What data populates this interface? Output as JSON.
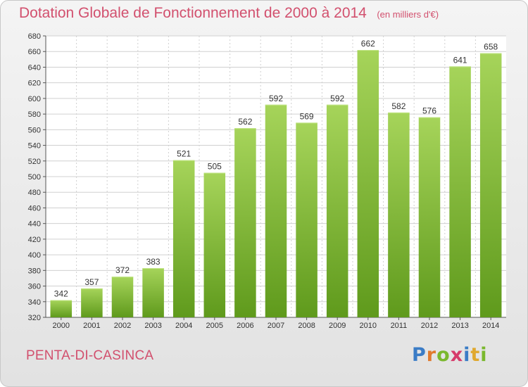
{
  "title": "Dotation Globale de Fonctionnement de 2000 à 2014",
  "unit": "(en milliers d'€)",
  "commune": "PENTA-DI-CASINCA",
  "logo": {
    "letters": [
      "P",
      "r",
      "o",
      "x",
      "i",
      "t",
      "i"
    ],
    "colors": [
      "#3a7cc6",
      "#e07a2e",
      "#7ab82d",
      "#d63a6a",
      "#3a7cc6",
      "#e0a82e",
      "#7ab82d"
    ]
  },
  "colors": {
    "title": "#d2506e",
    "bar_top": "#a6d45a",
    "bar_bottom": "#5f9a1c",
    "grid": "#d0d0d0"
  },
  "chart_data": {
    "type": "bar",
    "categories": [
      "2000",
      "2001",
      "2002",
      "2003",
      "2004",
      "2005",
      "2006",
      "2007",
      "2008",
      "2009",
      "2010",
      "2011",
      "2012",
      "2013",
      "2014"
    ],
    "values": [
      342,
      357,
      372,
      383,
      521,
      505,
      562,
      592,
      569,
      592,
      662,
      582,
      576,
      641,
      658
    ],
    "ylim": [
      320,
      680
    ],
    "yticks": [
      320,
      340,
      360,
      380,
      400,
      420,
      440,
      460,
      480,
      500,
      520,
      540,
      560,
      580,
      600,
      620,
      640,
      660,
      680
    ],
    "grid": true,
    "legend": "none"
  }
}
